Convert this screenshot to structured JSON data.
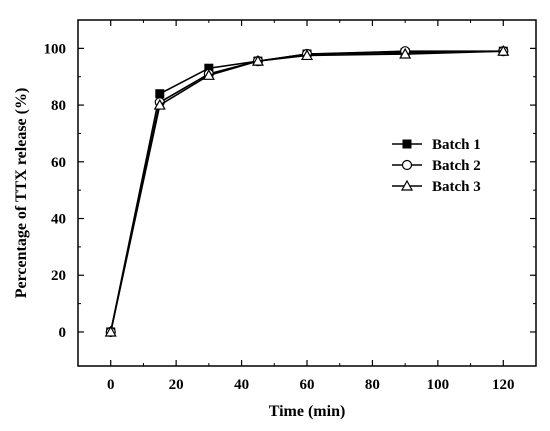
{
  "chart_data": {
    "type": "line",
    "title": "",
    "xlabel": "Time (min)",
    "ylabel": "Percentage of TTX release (%)",
    "xlim": [
      -10,
      130
    ],
    "ylim": [
      -12,
      110
    ],
    "xticks": [
      0,
      20,
      40,
      60,
      80,
      100,
      120
    ],
    "yticks": [
      0,
      20,
      40,
      60,
      80,
      100
    ],
    "grid": false,
    "legend_position": "right",
    "x": [
      0,
      15,
      30,
      45,
      60,
      90,
      120
    ],
    "series": [
      {
        "name": "Batch 1",
        "marker": "filled-square",
        "values": [
          0,
          84,
          93,
          95.5,
          98,
          98.5,
          99
        ]
      },
      {
        "name": "Batch 2",
        "marker": "open-circle",
        "values": [
          0,
          81,
          91,
          95.5,
          98,
          99,
          99
        ]
      },
      {
        "name": "Batch 3",
        "marker": "open-triangle",
        "values": [
          0,
          80,
          90.5,
          95.5,
          97.5,
          98,
          99
        ]
      }
    ]
  }
}
